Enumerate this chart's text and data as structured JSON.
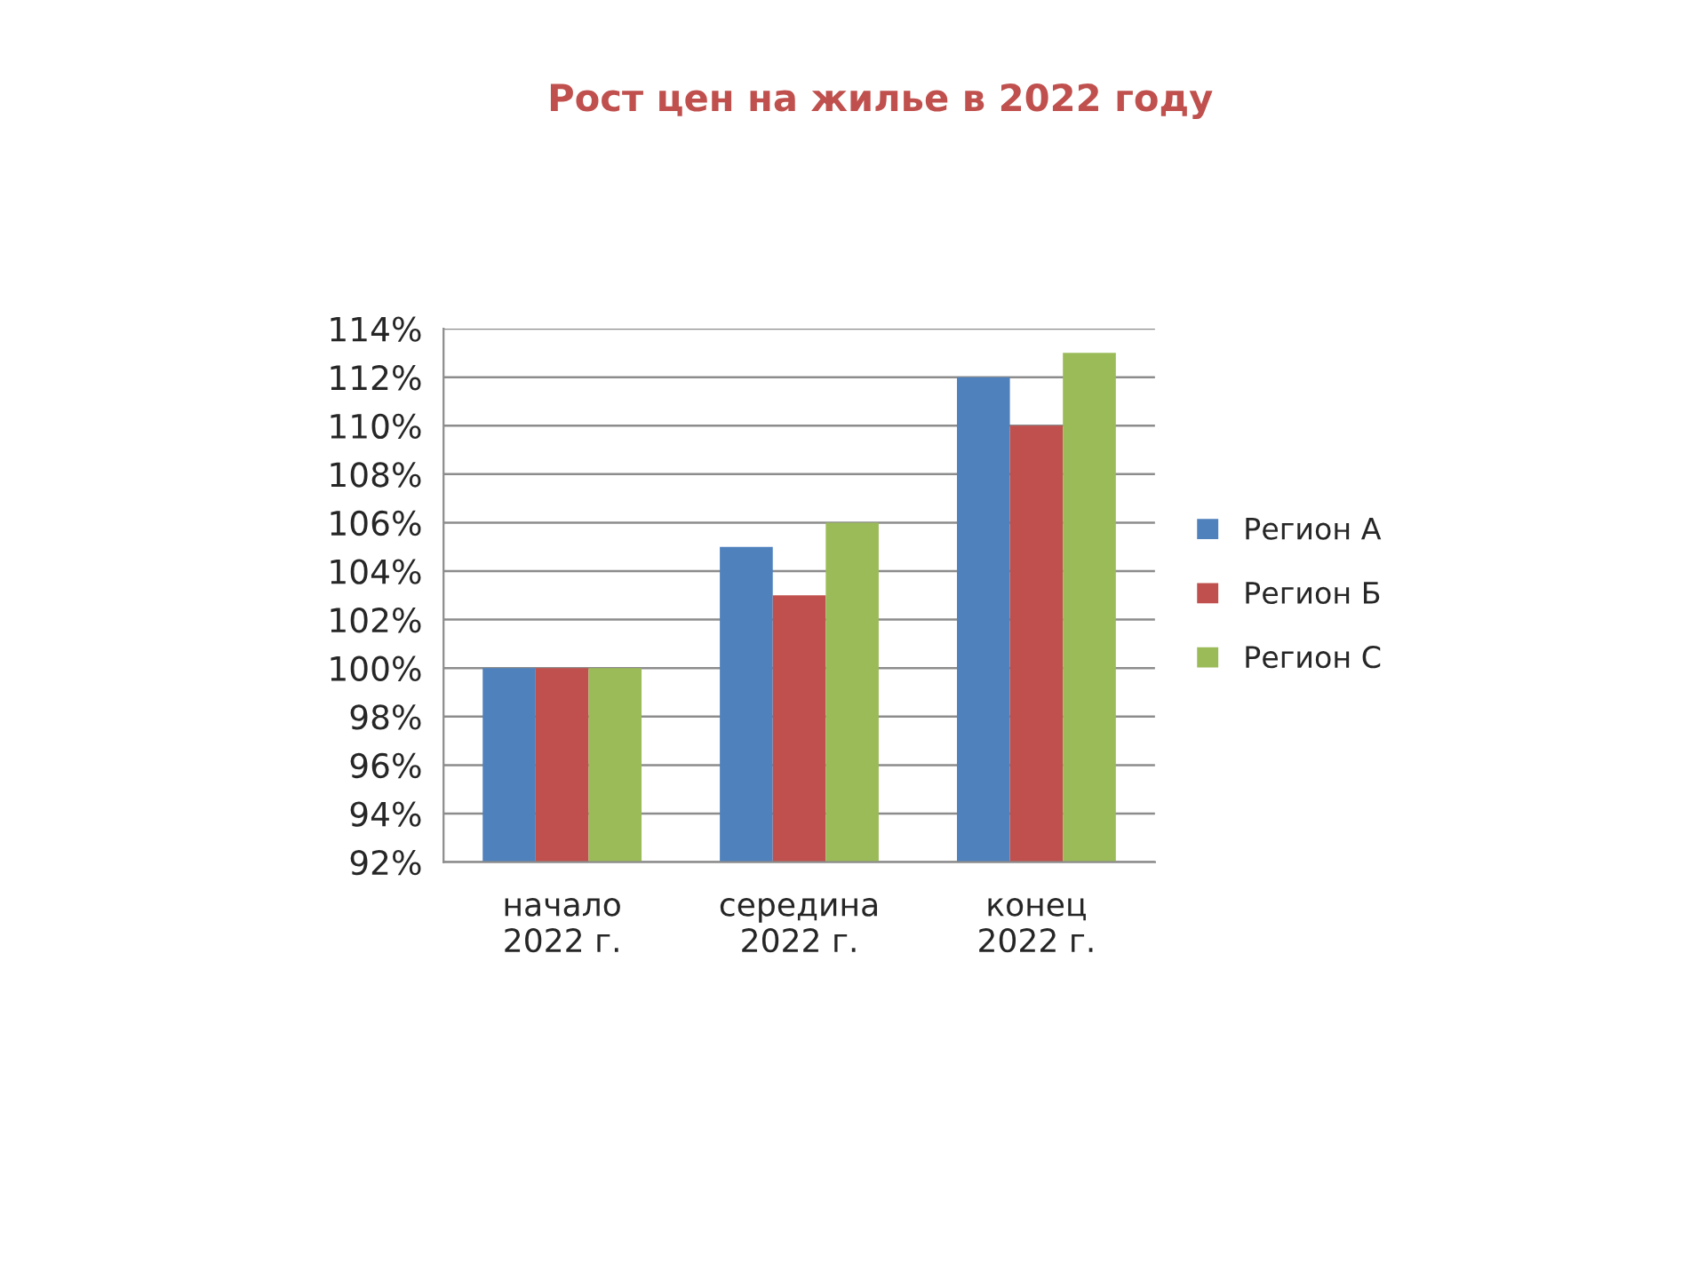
{
  "chart_data": {
    "type": "bar",
    "title": "Рост цен на жилье в 2022 году",
    "categories": [
      "начало\n2022 г.",
      "середина\n2022 г.",
      "конец\n2022 г."
    ],
    "series": [
      {
        "name": "Регион А",
        "color": "#4f81bd",
        "values": [
          100,
          105,
          112
        ]
      },
      {
        "name": "Регион Б",
        "color": "#c0504d",
        "values": [
          100,
          103,
          110
        ]
      },
      {
        "name": "Регион С",
        "color": "#9bbb59",
        "values": [
          100,
          106,
          113
        ]
      }
    ],
    "ylim": [
      92,
      114
    ],
    "yticks": [
      {
        "value": 92,
        "label": "92%"
      },
      {
        "value": 94,
        "label": "94%"
      },
      {
        "value": 96,
        "label": "96%"
      },
      {
        "value": 98,
        "label": "98%"
      },
      {
        "value": 100,
        "label": "100%"
      },
      {
        "value": 102,
        "label": "102%"
      },
      {
        "value": 104,
        "label": "104%"
      },
      {
        "value": 106,
        "label": "106%"
      },
      {
        "value": 108,
        "label": "108%"
      },
      {
        "value": 110,
        "label": "110%"
      },
      {
        "value": 112,
        "label": "112%"
      },
      {
        "value": 114,
        "label": "114%"
      }
    ],
    "grid": "y",
    "legend": "right"
  }
}
